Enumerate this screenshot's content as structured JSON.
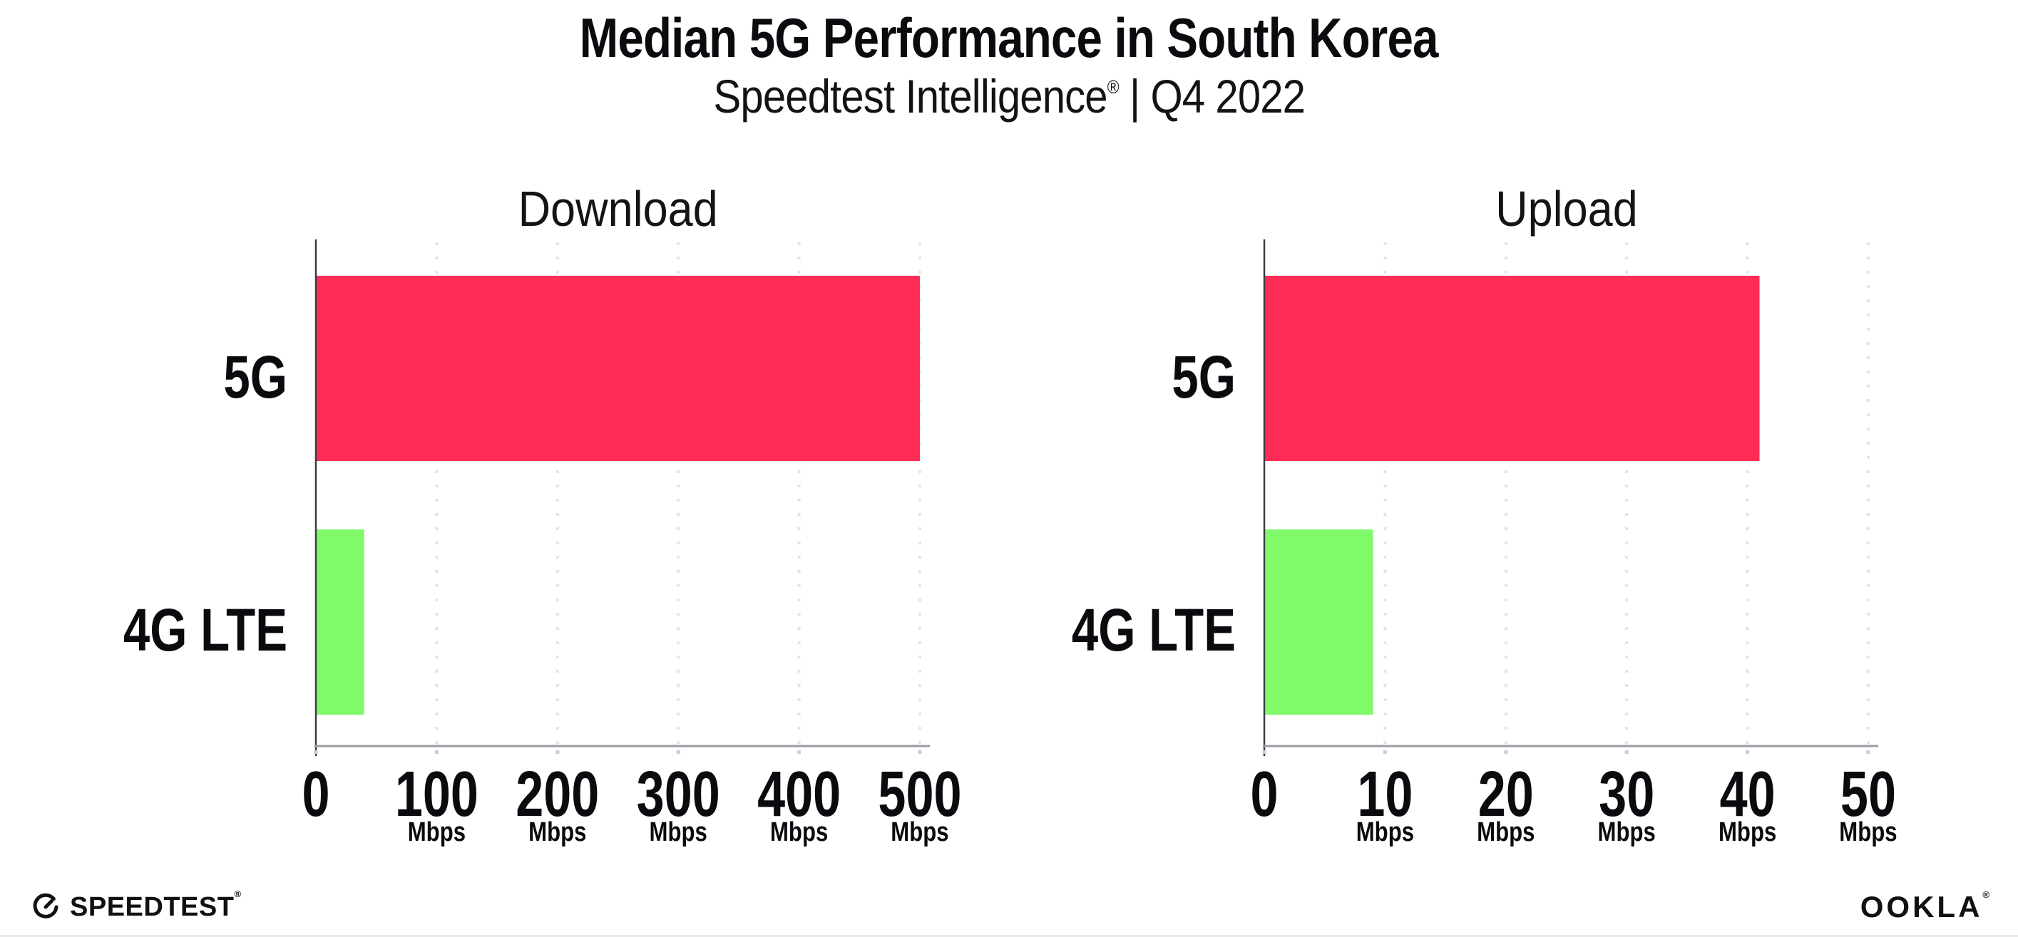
{
  "header": {
    "title": "Median 5G Performance in South Korea",
    "subtitle_brand": "Speedtest Intelligence",
    "subtitle_mark": "®",
    "subtitle_rest": " | Q4 2022"
  },
  "colors": {
    "bar_5g": "#FF2D55",
    "bar_4g_lte": "#80FA6A",
    "gridline": "#E3E3EC",
    "y_axis_line": "#3C3C46",
    "x_axis_line": "#9B9BA4",
    "tick_dot": "#CDCDD6",
    "text": "#0B0B0F"
  },
  "chart_data": [
    {
      "type": "bar",
      "orientation": "horizontal",
      "title": "Download",
      "categories": [
        "5G",
        "4G LTE"
      ],
      "values": [
        500,
        40
      ],
      "bar_colors": [
        "#FF2D55",
        "#80FA6A"
      ],
      "unit": "Mbps",
      "xlim": [
        0,
        500
      ],
      "xticks": [
        0,
        100,
        200,
        300,
        400,
        500
      ],
      "tick_unit_label": "Mbps",
      "grid": "dotted-vertical",
      "legend": "none"
    },
    {
      "type": "bar",
      "orientation": "horizontal",
      "title": "Upload",
      "categories": [
        "5G",
        "4G LTE"
      ],
      "values": [
        41,
        9
      ],
      "bar_colors": [
        "#FF2D55",
        "#80FA6A"
      ],
      "unit": "Mbps",
      "xlim": [
        0,
        50
      ],
      "xticks": [
        0,
        10,
        20,
        30,
        40,
        50
      ],
      "tick_unit_label": "Mbps",
      "grid": "dotted-vertical",
      "legend": "none"
    }
  ],
  "footer": {
    "speedtest": "SPEEDTEST",
    "speedtest_mark": "®",
    "ookla": "OOKLA",
    "ookla_mark": "®"
  }
}
